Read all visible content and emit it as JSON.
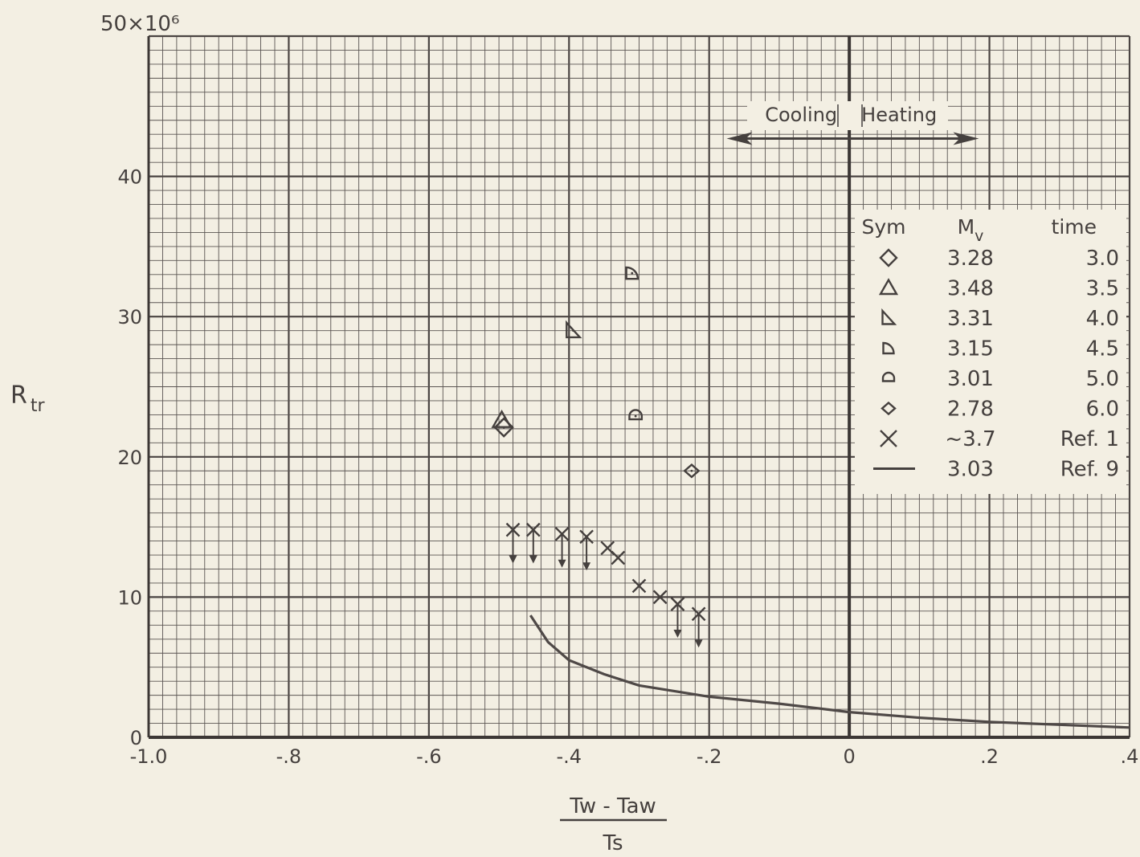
{
  "chart_data": {
    "type": "scatter",
    "title": "",
    "xlabel": {
      "numerator": "Tw - Taw",
      "denominator": "Ts"
    },
    "ylabel": "Rtr",
    "y_multiplier_label": "50×10⁶",
    "xlim": [
      -1.0,
      0.4
    ],
    "ylim": [
      0,
      50
    ],
    "x_ticks": [
      {
        "value": -1.0,
        "label": "-1.0"
      },
      {
        "value": -0.8,
        "label": "-.8"
      },
      {
        "value": -0.6,
        "label": "-.6"
      },
      {
        "value": -0.4,
        "label": "-.4"
      },
      {
        "value": -0.2,
        "label": "-.2"
      },
      {
        "value": 0.0,
        "label": "0"
      },
      {
        "value": 0.2,
        "label": ".2"
      },
      {
        "value": 0.4,
        "label": ".4"
      }
    ],
    "y_ticks": [
      {
        "value": 0,
        "label": "0"
      },
      {
        "value": 10,
        "label": "10"
      },
      {
        "value": 20,
        "label": "20"
      },
      {
        "value": 30,
        "label": "30"
      },
      {
        "value": 40,
        "label": "40"
      }
    ],
    "grid": true,
    "annotation": {
      "cooling": "Cooling",
      "heating": "Heating",
      "x_from": -0.175,
      "x_mid": 0.0,
      "x_to": 0.185,
      "y": 42.7
    },
    "legend": {
      "placement": "right",
      "headers": {
        "sym": "Sym",
        "mach_main": "M",
        "mach_sub": "v",
        "time": "time"
      },
      "entries": [
        {
          "symbol": "diamond",
          "mach": "3.28",
          "time": "3.0"
        },
        {
          "symbol": "triangle",
          "mach": "3.48",
          "time": "3.5"
        },
        {
          "symbol": "right-triangle",
          "mach": "3.31",
          "time": "4.0"
        },
        {
          "symbol": "quarter-circle",
          "mach": "3.15",
          "time": "4.5"
        },
        {
          "symbol": "half-circle",
          "mach": "3.01",
          "time": "5.0"
        },
        {
          "symbol": "small-diamond",
          "mach": "2.78",
          "time": "6.0"
        },
        {
          "symbol": "x-mark",
          "mach": "~3.7",
          "time": "Ref. 1"
        },
        {
          "symbol": "line",
          "mach": "3.03",
          "time": "Ref. 9"
        }
      ]
    },
    "series": [
      {
        "symbol": "diamond",
        "points": [
          {
            "x": -0.493,
            "y": 22.1
          }
        ]
      },
      {
        "symbol": "triangle",
        "points": [
          {
            "x": -0.496,
            "y": 22.6
          }
        ]
      },
      {
        "symbol": "right-triangle",
        "points": [
          {
            "x": -0.394,
            "y": 29.0
          }
        ]
      },
      {
        "symbol": "quarter-circle",
        "points": [
          {
            "x": -0.31,
            "y": 33.1
          }
        ]
      },
      {
        "symbol": "half-circle",
        "points": [
          {
            "x": -0.305,
            "y": 22.9
          }
        ]
      },
      {
        "symbol": "small-diamond",
        "points": [
          {
            "x": -0.225,
            "y": 19.0
          }
        ]
      },
      {
        "symbol": "x-mark",
        "points": [
          {
            "x": -0.48,
            "y": 14.8,
            "down_arrow": true
          },
          {
            "x": -0.451,
            "y": 14.8,
            "down_arrow": true
          },
          {
            "x": -0.41,
            "y": 14.5,
            "down_arrow": true
          },
          {
            "x": -0.375,
            "y": 14.3,
            "down_arrow": true
          },
          {
            "x": -0.345,
            "y": 13.5,
            "down_arrow": false
          },
          {
            "x": -0.33,
            "y": 12.8,
            "down_arrow": false
          },
          {
            "x": -0.3,
            "y": 10.8,
            "down_arrow": false
          },
          {
            "x": -0.27,
            "y": 10.0,
            "down_arrow": false
          },
          {
            "x": -0.245,
            "y": 9.5,
            "down_arrow": true
          },
          {
            "x": -0.215,
            "y": 8.8,
            "down_arrow": true
          }
        ]
      },
      {
        "symbol": "line",
        "points": [
          {
            "x": -0.455,
            "y": 8.7
          },
          {
            "x": -0.43,
            "y": 6.8
          },
          {
            "x": -0.4,
            "y": 5.5
          },
          {
            "x": -0.35,
            "y": 4.5
          },
          {
            "x": -0.3,
            "y": 3.7
          },
          {
            "x": -0.2,
            "y": 2.9
          },
          {
            "x": -0.1,
            "y": 2.4
          },
          {
            "x": 0.0,
            "y": 1.8
          },
          {
            "x": 0.1,
            "y": 1.4
          },
          {
            "x": 0.2,
            "y": 1.1
          },
          {
            "x": 0.3,
            "y": 0.9
          },
          {
            "x": 0.4,
            "y": 0.7
          }
        ]
      }
    ]
  }
}
